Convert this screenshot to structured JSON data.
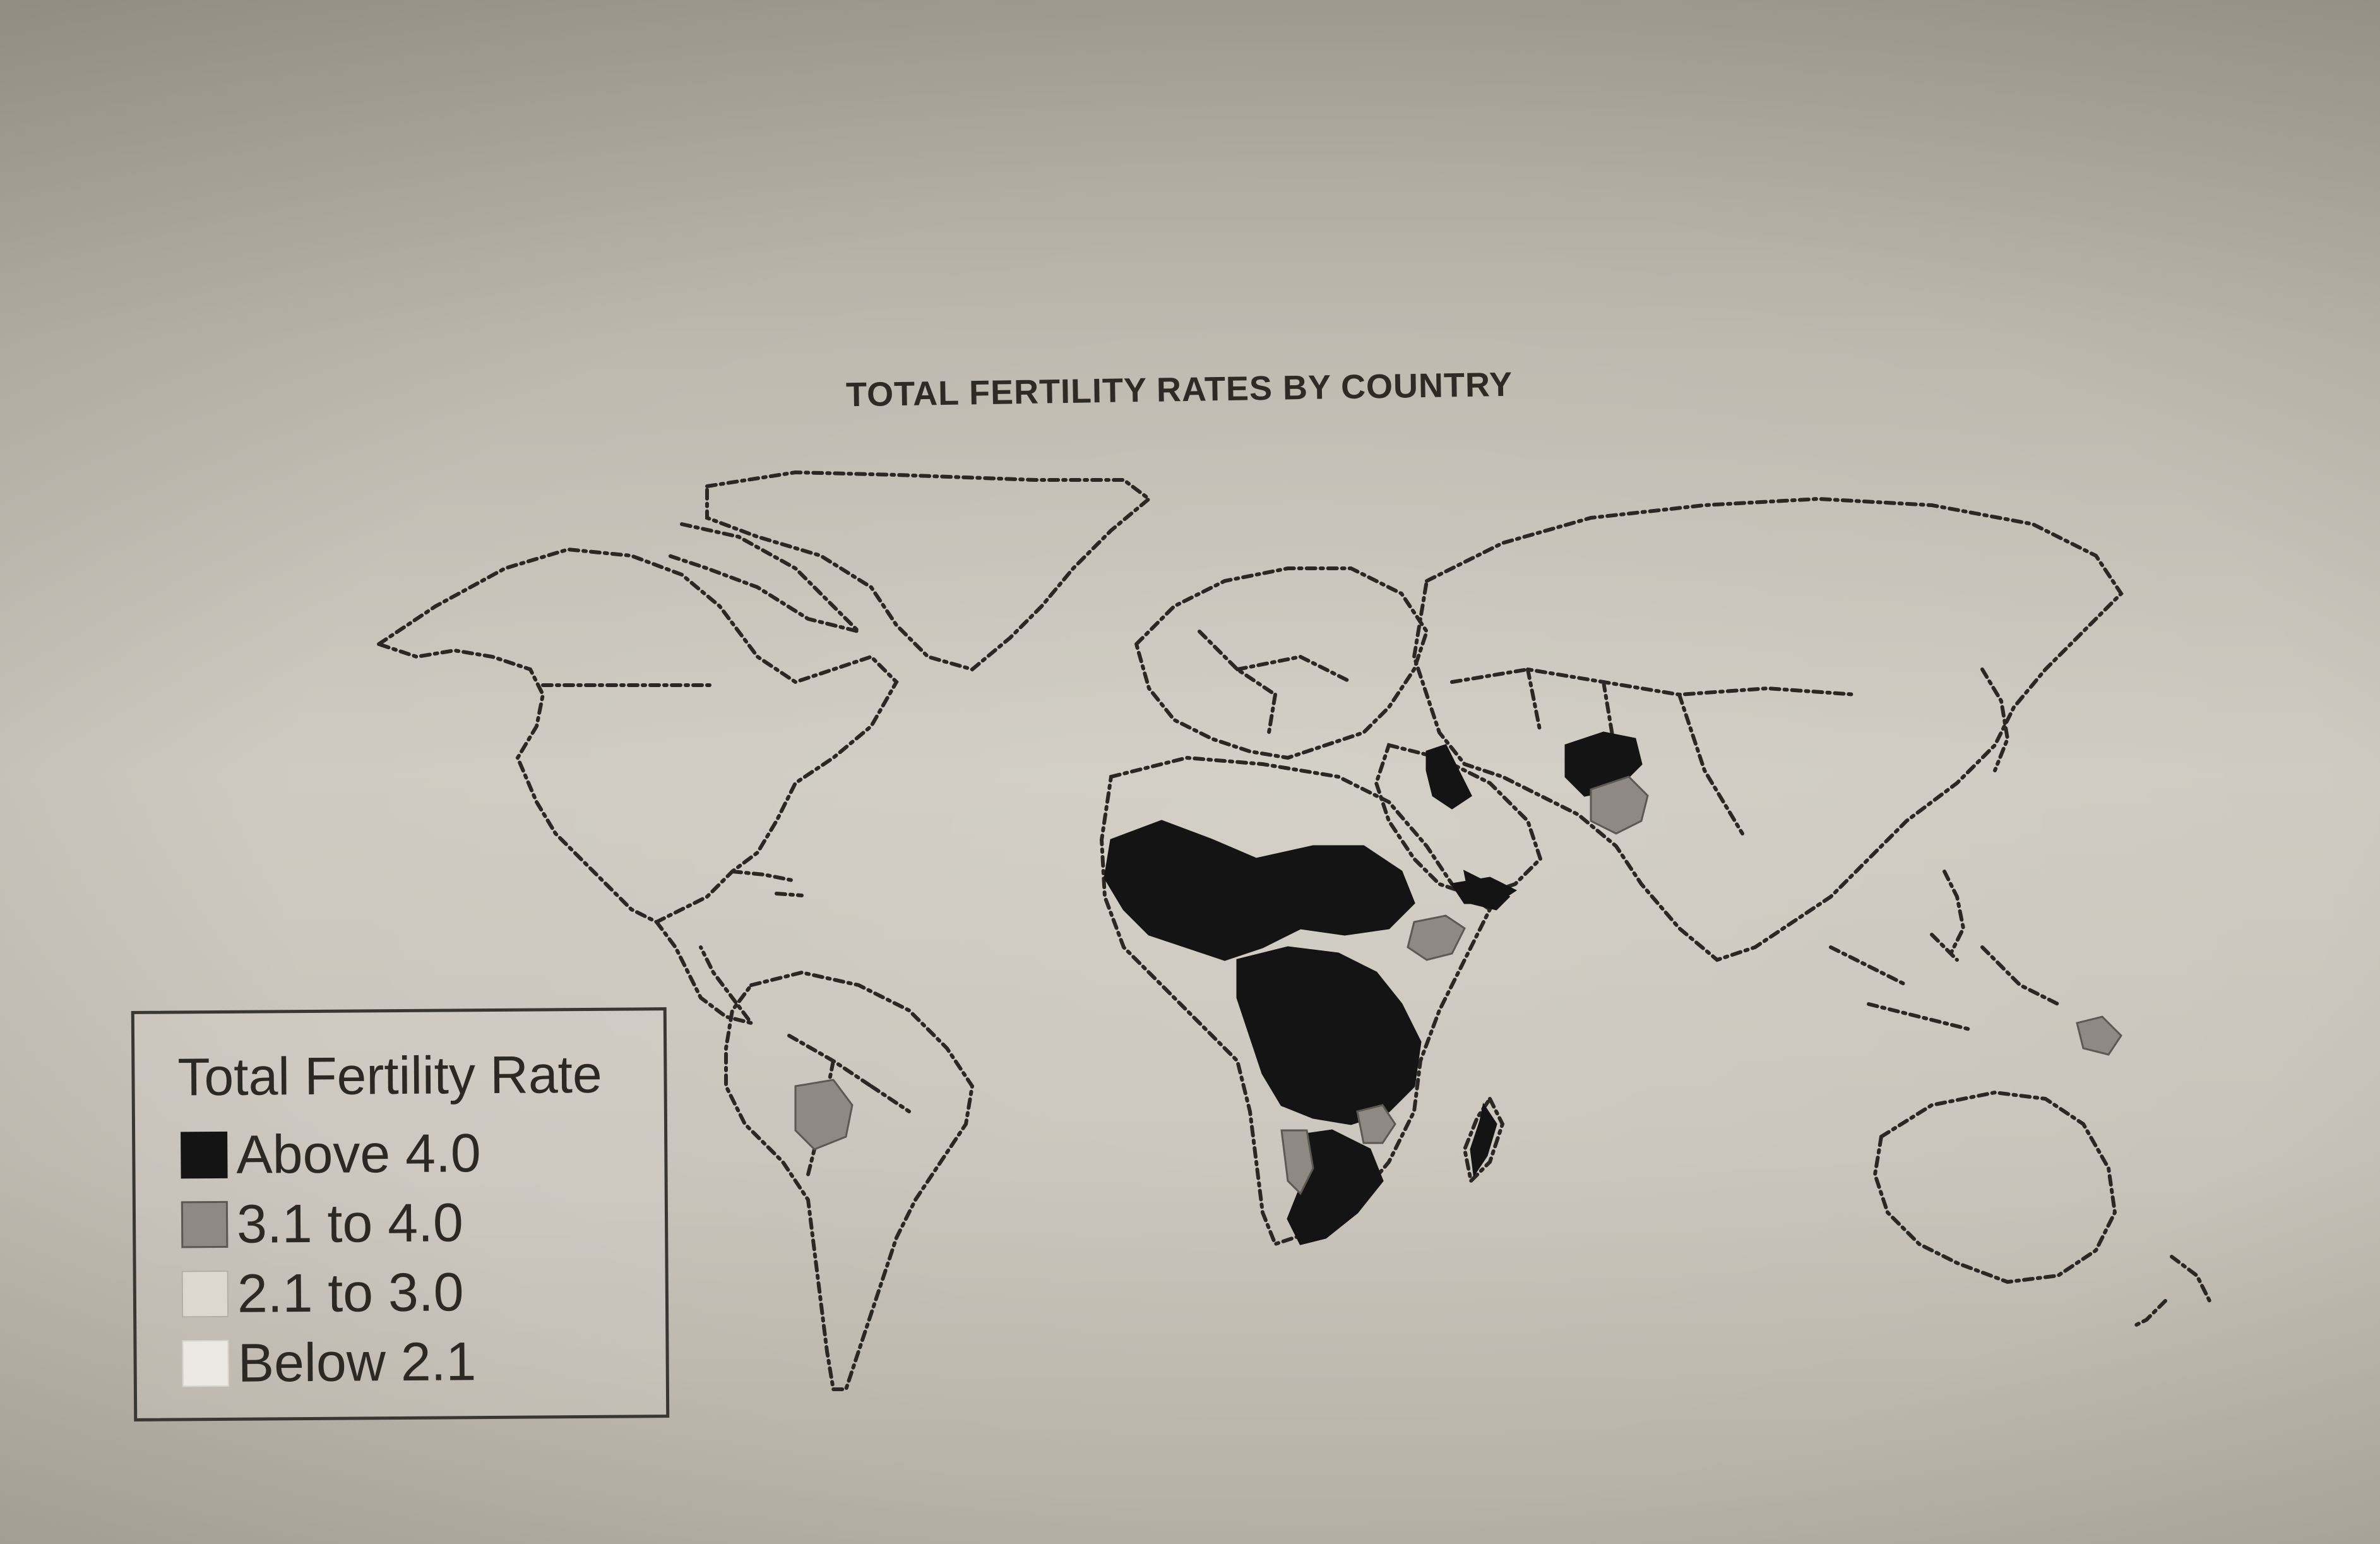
{
  "map": {
    "title": "TOTAL FERTILITY RATES BY COUNTRY",
    "legend": {
      "title": "Total Fertility Rate",
      "items": [
        {
          "label": "Above 4.0",
          "color": "#141414"
        },
        {
          "label": "3.1 to 4.0",
          "color": "#8e8a83"
        },
        {
          "label": "2.1 to 3.0",
          "color": "#dcd8d0"
        },
        {
          "label": "Below 2.1",
          "color": "#ece9e2"
        }
      ]
    }
  }
}
